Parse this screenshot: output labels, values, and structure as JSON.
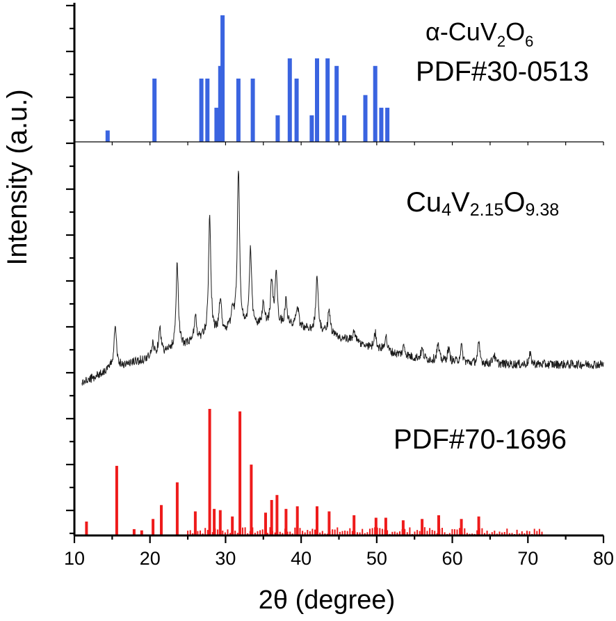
{
  "chart_data": {
    "type": "bar",
    "title": "",
    "xlabel": "2θ (degree)",
    "ylabel": "Intensity (a.u.)",
    "xlim": [
      10,
      80
    ],
    "xticks": [
      10,
      20,
      30,
      40,
      50,
      60,
      70,
      80
    ],
    "colors": {
      "blue": "#3a64e0",
      "red": "#ee1b1b",
      "black": "#1a1a1a",
      "axis": "#000000"
    },
    "labels": {
      "alpha": {
        "base": "α-CuV",
        "sub1": "2",
        "mid": "O",
        "sub2": "6"
      },
      "pdf30": "PDF#30-0513",
      "cu4": {
        "a": "Cu",
        "b": "4",
        "c": "V",
        "d": "2.15",
        "e": "O",
        "f": "9.38"
      },
      "pdf70": "PDF#70-1696"
    },
    "series": [
      {
        "name": "α-CuV2O6 PDF#30-0513",
        "kind": "sticks",
        "positions": [
          14.4,
          20.6,
          26.8,
          27.6,
          28.8,
          29.3,
          29.6,
          31.7,
          33.6,
          36.9,
          38.5,
          39.4,
          41.4,
          42.1,
          43.5,
          44.7,
          45.7,
          48.5,
          49.8,
          50.6,
          51.4
        ],
        "intensities": [
          9,
          50,
          50,
          50,
          27,
          60,
          100,
          50,
          50,
          21,
          66,
          50,
          21,
          66,
          66,
          60,
          21,
          37,
          60,
          27,
          27
        ]
      },
      {
        "name": "Cu4V2.15O9.38",
        "kind": "pattern",
        "peaks": [
          [
            15.4,
            14
          ],
          [
            20.4,
            4
          ],
          [
            21.3,
            9
          ],
          [
            23.6,
            27
          ],
          [
            26.0,
            8
          ],
          [
            27.9,
            38
          ],
          [
            29.3,
            11
          ],
          [
            30.9,
            6
          ],
          [
            31.7,
            50
          ],
          [
            33.3,
            24
          ],
          [
            35.0,
            7
          ],
          [
            36.1,
            14
          ],
          [
            36.7,
            15
          ],
          [
            38.0,
            8
          ],
          [
            39.5,
            7
          ],
          [
            42.1,
            17
          ],
          [
            43.7,
            8
          ],
          [
            47.0,
            4
          ],
          [
            49.8,
            5
          ],
          [
            51.2,
            5
          ],
          [
            53.6,
            3
          ],
          [
            56.0,
            3
          ],
          [
            58.1,
            5
          ],
          [
            59.5,
            4
          ],
          [
            61.2,
            5
          ],
          [
            63.5,
            6
          ],
          [
            65.5,
            3
          ],
          [
            70.3,
            3
          ]
        ]
      },
      {
        "name": "PDF#70-1696",
        "kind": "sticks",
        "positions": [
          11.6,
          15.6,
          17.9,
          18.9,
          20.4,
          21.5,
          23.6,
          26.0,
          27.9,
          28.5,
          29.3,
          30.9,
          31.9,
          33.4,
          35.3,
          36.1,
          36.8,
          38.0,
          39.5,
          42.1,
          43.7,
          47.0,
          49.9,
          51.2,
          53.5,
          56.0,
          58.2,
          61.2,
          63.5
        ],
        "intensities": [
          11,
          55,
          5,
          4,
          13,
          24,
          42,
          19,
          100,
          21,
          20,
          15,
          98,
          56,
          18,
          28,
          32,
          21,
          23,
          23,
          19,
          16,
          14,
          14,
          12,
          13,
          16,
          13,
          15
        ]
      }
    ]
  }
}
